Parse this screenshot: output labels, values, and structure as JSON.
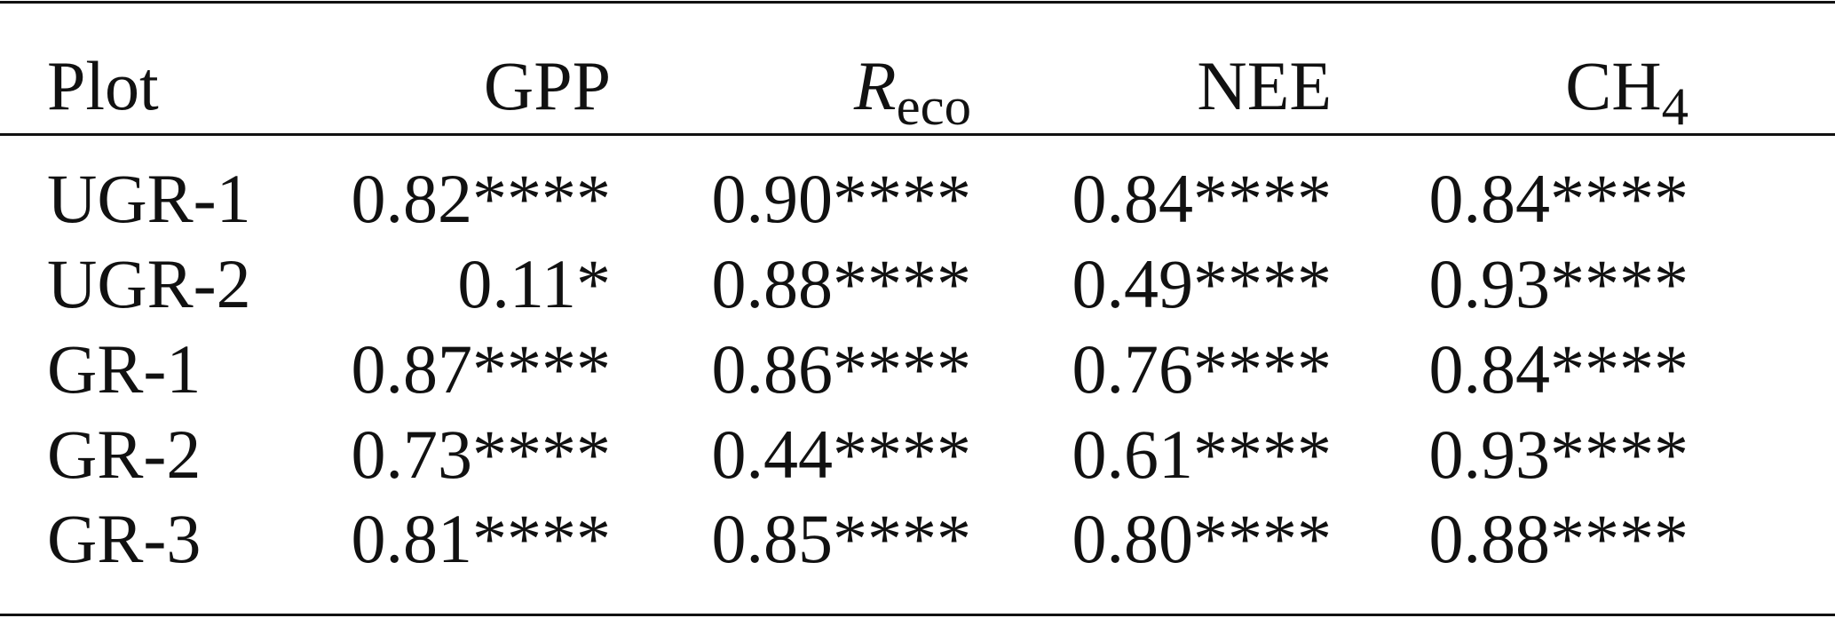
{
  "table": {
    "header": [
      {
        "main": "Plot"
      },
      {
        "main": "GPP"
      },
      {
        "main": "R",
        "sub": "eco"
      },
      {
        "main": "NEE"
      },
      {
        "main": "CH",
        "sub": "4"
      }
    ],
    "rows": [
      [
        "UGR-1",
        "0.82****",
        "0.90****",
        "0.84****",
        "0.84****"
      ],
      [
        "UGR-2",
        "0.11*",
        "0.88****",
        "0.49****",
        "0.93****"
      ],
      [
        "GR-1",
        "0.87****",
        "0.86****",
        "0.76****",
        "0.84****"
      ],
      [
        "GR-2",
        "0.73****",
        "0.44****",
        "0.61****",
        "0.93****"
      ],
      [
        "GR-3",
        "0.81****",
        "0.85****",
        "0.80****",
        "0.88****"
      ]
    ]
  }
}
